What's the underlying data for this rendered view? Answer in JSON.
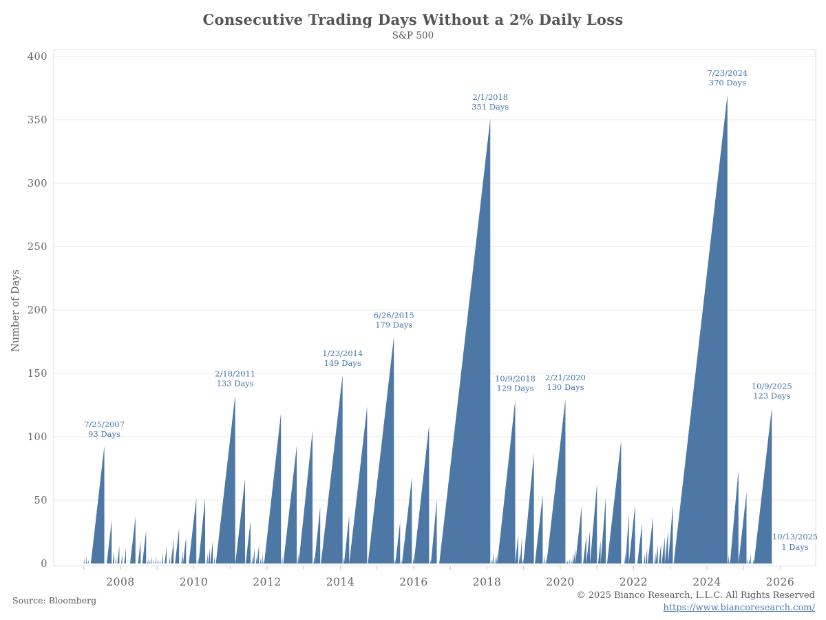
{
  "page": {
    "title": "Consecutive Trading Days Without a 2% Daily Loss",
    "subtitle": "S&P 500",
    "footer": {
      "source": "Source: Bloomberg",
      "copyright": "© 2025 Bianco Research, L.L.C. All Rights Reserved",
      "link_text": "https://www.biancoresearch.com/"
    }
  },
  "colors": {
    "area": "#4d77a4",
    "annotation": "#4276ac",
    "grid": "#ededed",
    "frame": "#e4e4e4",
    "tick": "#c9c9c9",
    "axis_text": "#636363",
    "background": "#ffffff"
  },
  "chart_data": {
    "type": "area",
    "title": "Consecutive Trading Days Without a 2% Daily Loss",
    "subtitle": "S&P 500",
    "series_name": "S&P 500 consecutive trading days without a 2% daily loss",
    "xlabel": "",
    "ylabel": "Number of Days",
    "ylim": [
      0,
      400
    ],
    "y_ticks": [
      0,
      50,
      100,
      150,
      200,
      250,
      300,
      350,
      400
    ],
    "x_ticks": [
      2008,
      2010,
      2012,
      2014,
      2016,
      2018,
      2020,
      2022,
      2024,
      2026
    ],
    "x_minor_ticks": [
      2007,
      2008,
      2009,
      2010,
      2011,
      2012,
      2013,
      2014,
      2015,
      2016,
      2017,
      2018,
      2019,
      2020,
      2021,
      2022,
      2023,
      2024,
      2025,
      2026
    ],
    "xlim": [
      2006.18,
      2026.97
    ],
    "grid": "horizontal",
    "legend": "none",
    "units": "trading days",
    "runs_format": "[streak_end_decimal_year, streak_length_days]",
    "runs": [
      [
        2007.02,
        4
      ],
      [
        2007.08,
        6
      ],
      [
        2007.13,
        3
      ],
      [
        2007.56,
        93
      ],
      [
        2007.76,
        34
      ],
      [
        2007.83,
        10
      ],
      [
        2007.88,
        6
      ],
      [
        2007.97,
        14
      ],
      [
        2008.05,
        8
      ],
      [
        2008.15,
        12
      ],
      [
        2008.41,
        37
      ],
      [
        2008.55,
        18
      ],
      [
        2008.7,
        26
      ],
      [
        2008.76,
        4
      ],
      [
        2008.81,
        3
      ],
      [
        2008.86,
        5
      ],
      [
        2008.92,
        3
      ],
      [
        2008.97,
        6
      ],
      [
        2009.03,
        4
      ],
      [
        2009.09,
        3
      ],
      [
        2009.16,
        8
      ],
      [
        2009.26,
        14
      ],
      [
        2009.35,
        6
      ],
      [
        2009.45,
        19
      ],
      [
        2009.6,
        28
      ],
      [
        2009.7,
        10
      ],
      [
        2009.79,
        21
      ],
      [
        2010.07,
        52
      ],
      [
        2010.13,
        5
      ],
      [
        2010.31,
        52
      ],
      [
        2010.38,
        8
      ],
      [
        2010.44,
        12
      ],
      [
        2010.52,
        18
      ],
      [
        2010.57,
        6
      ],
      [
        2011.13,
        133
      ],
      [
        2011.4,
        67
      ],
      [
        2011.55,
        34
      ],
      [
        2011.6,
        5
      ],
      [
        2011.66,
        12
      ],
      [
        2011.72,
        6
      ],
      [
        2011.78,
        15
      ],
      [
        2011.83,
        4
      ],
      [
        2011.88,
        8
      ],
      [
        2011.92,
        3
      ],
      [
        2012.38,
        119
      ],
      [
        2012.42,
        6
      ],
      [
        2012.81,
        93
      ],
      [
        2012.86,
        8
      ],
      [
        2013.24,
        105
      ],
      [
        2013.29,
        6
      ],
      [
        2013.45,
        45
      ],
      [
        2014.06,
        149
      ],
      [
        2014.1,
        5
      ],
      [
        2014.24,
        38
      ],
      [
        2014.73,
        124
      ],
      [
        2015.46,
        179
      ],
      [
        2015.5,
        4
      ],
      [
        2015.63,
        33
      ],
      [
        2015.67,
        3
      ],
      [
        2015.95,
        68
      ],
      [
        2016.0,
        5
      ],
      [
        2016.42,
        109
      ],
      [
        2016.47,
        3
      ],
      [
        2016.63,
        50
      ],
      [
        2018.09,
        351
      ],
      [
        2018.13,
        3
      ],
      [
        2018.18,
        9
      ],
      [
        2018.23,
        5
      ],
      [
        2018.28,
        8
      ],
      [
        2018.77,
        129
      ],
      [
        2018.85,
        23
      ],
      [
        2018.9,
        8
      ],
      [
        2018.95,
        20
      ],
      [
        2018.99,
        4
      ],
      [
        2019.28,
        87
      ],
      [
        2019.52,
        54
      ],
      [
        2019.57,
        7
      ],
      [
        2019.62,
        6
      ],
      [
        2020.14,
        130
      ],
      [
        2020.17,
        2
      ],
      [
        2020.21,
        3
      ],
      [
        2020.26,
        4
      ],
      [
        2020.31,
        3
      ],
      [
        2020.36,
        8
      ],
      [
        2020.41,
        12
      ],
      [
        2020.58,
        45
      ],
      [
        2020.71,
        22
      ],
      [
        2020.81,
        26
      ],
      [
        2021.0,
        63
      ],
      [
        2021.1,
        18
      ],
      [
        2021.24,
        52
      ],
      [
        2021.66,
        97
      ],
      [
        2021.78,
        8
      ],
      [
        2021.87,
        40
      ],
      [
        2022.04,
        46
      ],
      [
        2022.23,
        32
      ],
      [
        2022.31,
        8
      ],
      [
        2022.37,
        12
      ],
      [
        2022.53,
        37
      ],
      [
        2022.6,
        9
      ],
      [
        2022.66,
        15
      ],
      [
        2022.75,
        16
      ],
      [
        2022.85,
        21
      ],
      [
        2022.94,
        26
      ],
      [
        2023.07,
        46
      ],
      [
        2024.56,
        370
      ],
      [
        2024.6,
        7
      ],
      [
        2024.63,
        2
      ],
      [
        2024.86,
        74
      ],
      [
        2025.08,
        56
      ],
      [
        2025.12,
        5
      ],
      [
        2025.16,
        3
      ],
      [
        2025.2,
        8
      ],
      [
        2025.24,
        2
      ],
      [
        2025.28,
        4
      ],
      [
        2025.77,
        123
      ],
      [
        2025.785,
        1
      ]
    ],
    "annotations": [
      {
        "date": "7/25/2007",
        "days": 93,
        "x": 2007.56
      },
      {
        "date": "2/18/2011",
        "days": 133,
        "x": 2011.13
      },
      {
        "date": "1/23/2014",
        "days": 149,
        "x": 2014.06
      },
      {
        "date": "6/26/2015",
        "days": 179,
        "x": 2015.46
      },
      {
        "date": "2/1/2018",
        "days": 351,
        "x": 2018.09
      },
      {
        "date": "10/9/2018",
        "days": 129,
        "x": 2018.77
      },
      {
        "date": "2/21/2020",
        "days": 130,
        "x": 2020.14
      },
      {
        "date": "7/23/2024",
        "days": 370,
        "x": 2024.56
      },
      {
        "date": "10/9/2025",
        "days": 123,
        "x": 2025.77
      },
      {
        "date": "10/13/2025",
        "days": 1,
        "x": 2025.785
      }
    ],
    "days_suffix": "Days"
  }
}
